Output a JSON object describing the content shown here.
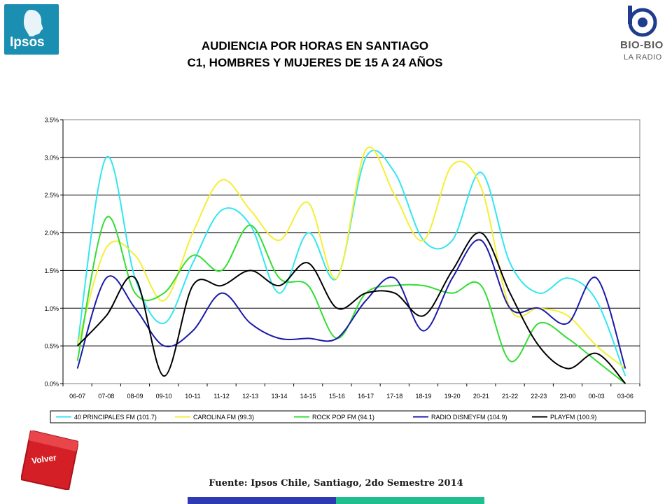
{
  "header": {
    "title_line1": "AUDIENCIA POR HORAS EN SANTIAGO",
    "title_line2": "C1, HOMBRES Y MUJERES DE 15 A 24 AÑOS"
  },
  "logos": {
    "ipsos": "Ipsos",
    "biobio_name": "BIO-BIO",
    "biobio_sub": "LA RADIO"
  },
  "footer": {
    "source": "Fuente: Ipsos Chile, Santiago, 2do Semestre 2014",
    "back_button": "Volver"
  },
  "colors": {
    "ipsos_blue": "#1b8fb2",
    "volver_red": "#d41f26",
    "bar_blue": "#2e3ab3",
    "bar_teal": "#1fbf8f"
  },
  "chart_data": {
    "type": "line",
    "title": "",
    "xlabel": "",
    "ylabel": "",
    "ylim": [
      0,
      0.035
    ],
    "y_ticks": [
      "0.0%",
      "0.5%",
      "1.0%",
      "1.5%",
      "2.0%",
      "2.5%",
      "3.0%",
      "3.5%"
    ],
    "grid": true,
    "legend_position": "bottom",
    "categories": [
      "06-07",
      "07-08",
      "08-09",
      "09-10",
      "10-11",
      "11-12",
      "12-13",
      "13-14",
      "14-15",
      "15-16",
      "16-17",
      "17-18",
      "18-19",
      "19-20",
      "20-21",
      "21-22",
      "22-23",
      "23-00",
      "00-03",
      "03-06"
    ],
    "series": [
      {
        "name": "40 PRINCIPALES FM (101.7)",
        "color": "#33e6f0",
        "values": [
          0.005,
          0.03,
          0.014,
          0.008,
          0.016,
          0.023,
          0.021,
          0.012,
          0.02,
          0.014,
          0.03,
          0.028,
          0.019,
          0.019,
          0.028,
          0.016,
          0.012,
          0.014,
          0.011,
          0.001
        ]
      },
      {
        "name": "CAROLINA FM (99.3)",
        "color": "#f5ee35",
        "values": [
          0.005,
          0.018,
          0.017,
          0.011,
          0.02,
          0.027,
          0.023,
          0.019,
          0.024,
          0.014,
          0.031,
          0.025,
          0.019,
          0.029,
          0.026,
          0.01,
          0.01,
          0.009,
          0.005,
          0.002
        ]
      },
      {
        "name": "ROCK  POP FM (94.1)",
        "color": "#33dd33",
        "values": [
          0.003,
          0.022,
          0.012,
          0.012,
          0.017,
          0.015,
          0.021,
          0.014,
          0.013,
          0.006,
          0.012,
          0.013,
          0.013,
          0.012,
          0.013,
          0.003,
          0.008,
          0.006,
          0.003,
          0.0
        ]
      },
      {
        "name": "RADIO DISNEYFM (104.9)",
        "color": "#1a1aa8",
        "values": [
          0.002,
          0.014,
          0.01,
          0.005,
          0.007,
          0.012,
          0.008,
          0.006,
          0.006,
          0.006,
          0.011,
          0.014,
          0.007,
          0.014,
          0.019,
          0.01,
          0.01,
          0.008,
          0.014,
          0.002
        ]
      },
      {
        "name": "PLAYFM (100.9)",
        "color": "#000000",
        "values": [
          0.005,
          0.009,
          0.014,
          0.001,
          0.013,
          0.013,
          0.015,
          0.013,
          0.016,
          0.01,
          0.012,
          0.012,
          0.009,
          0.015,
          0.02,
          0.012,
          0.005,
          0.002,
          0.004,
          0.0
        ]
      }
    ]
  }
}
